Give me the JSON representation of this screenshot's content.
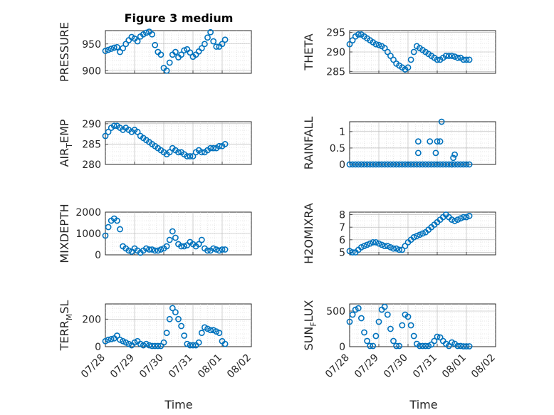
{
  "figure_title": "Figure 3 medium",
  "colors": {
    "marker": "#0072BD",
    "axis": "#262626",
    "grid": "#b0b0b0"
  },
  "x_ticks": [
    "07/28",
    "07/29",
    "07/30",
    "07/31",
    "08/01",
    "08/02"
  ],
  "x_label": "Time",
  "chart_data": [
    {
      "id": "pressure",
      "type": "scatter",
      "ylabel_parts": [
        "PRESSURE"
      ],
      "ylim": [
        895,
        975
      ],
      "yticks": [
        900,
        950
      ],
      "x": [
        0.0,
        0.1,
        0.2,
        0.3,
        0.4,
        0.5,
        0.6,
        0.7,
        0.8,
        0.9,
        1.0,
        1.1,
        1.2,
        1.3,
        1.4,
        1.5,
        1.6,
        1.7,
        1.8,
        1.9,
        2.0,
        2.1,
        2.2,
        2.3,
        2.4,
        2.5,
        2.6,
        2.7,
        2.8,
        2.9,
        3.0,
        3.1,
        3.2,
        3.3,
        3.4,
        3.5,
        3.6,
        3.7,
        3.8,
        3.9,
        4.0,
        4.1
      ],
      "y": [
        937,
        939,
        941,
        943,
        944,
        935,
        942,
        950,
        957,
        963,
        960,
        955,
        964,
        968,
        971,
        973,
        968,
        948,
        935,
        930,
        905,
        900,
        915,
        930,
        935,
        925,
        930,
        938,
        940,
        934,
        926,
        930,
        936,
        942,
        950,
        962,
        972,
        955,
        945,
        945,
        950,
        958
      ]
    },
    {
      "id": "theta",
      "type": "scatter",
      "ylabel_parts": [
        "THETA"
      ],
      "ylim": [
        284.5,
        295.5
      ],
      "yticks": [
        285,
        290,
        295
      ],
      "x": [
        0.0,
        0.1,
        0.2,
        0.3,
        0.4,
        0.5,
        0.6,
        0.7,
        0.8,
        0.9,
        1.0,
        1.1,
        1.2,
        1.3,
        1.4,
        1.5,
        1.6,
        1.7,
        1.8,
        1.9,
        2.0,
        2.1,
        2.2,
        2.3,
        2.4,
        2.5,
        2.6,
        2.7,
        2.8,
        2.9,
        3.0,
        3.1,
        3.2,
        3.3,
        3.4,
        3.5,
        3.6,
        3.7,
        3.8,
        3.9,
        4.0,
        4.1
      ],
      "y": [
        292,
        293,
        294,
        294.5,
        294.5,
        294,
        293.5,
        293,
        292.5,
        292,
        291.8,
        291.5,
        291,
        290,
        289,
        288,
        287,
        286.5,
        286,
        285.5,
        286,
        288,
        290,
        291.5,
        291,
        290.5,
        290,
        289.5,
        289,
        288.5,
        288,
        288,
        288.5,
        289,
        289,
        289,
        288.8,
        288.5,
        288.5,
        288,
        288,
        288
      ]
    },
    {
      "id": "air_temp",
      "type": "scatter",
      "ylabel_parts": [
        "AIR",
        "T",
        "EMP"
      ],
      "ylim": [
        280,
        290.5
      ],
      "yticks": [
        280,
        285,
        290
      ],
      "x": [
        0.0,
        0.1,
        0.2,
        0.3,
        0.4,
        0.5,
        0.6,
        0.7,
        0.8,
        0.9,
        1.0,
        1.1,
        1.2,
        1.3,
        1.4,
        1.5,
        1.6,
        1.7,
        1.8,
        1.9,
        2.0,
        2.1,
        2.2,
        2.3,
        2.4,
        2.5,
        2.6,
        2.7,
        2.8,
        2.9,
        3.0,
        3.1,
        3.2,
        3.3,
        3.4,
        3.5,
        3.6,
        3.7,
        3.8,
        3.9,
        4.0,
        4.1
      ],
      "y": [
        287,
        288,
        289,
        289.5,
        289.5,
        289,
        288.5,
        289,
        288.5,
        288,
        288.5,
        288,
        287,
        286.5,
        286,
        285.5,
        285,
        284.5,
        284,
        283.5,
        283,
        282.5,
        283,
        284,
        283.5,
        283,
        283,
        282.5,
        282,
        282,
        282,
        283,
        283.5,
        283,
        283,
        283.5,
        284,
        284,
        284,
        284.5,
        284.5,
        285
      ]
    },
    {
      "id": "rainfall",
      "type": "scatter",
      "ylabel_parts": [
        "RAINFALL"
      ],
      "ylim": [
        0,
        1.3
      ],
      "yticks": [
        0,
        0.5,
        1
      ],
      "ytick_labels": [
        "0",
        "0.5",
        "1"
      ],
      "x": [
        0.0,
        0.1,
        0.2,
        0.3,
        0.4,
        0.5,
        0.6,
        0.7,
        0.8,
        0.9,
        1.0,
        1.1,
        1.2,
        1.3,
        1.4,
        1.5,
        1.6,
        1.7,
        1.8,
        1.9,
        2.0,
        2.1,
        2.2,
        2.3,
        2.4,
        2.5,
        2.6,
        2.7,
        2.8,
        2.9,
        3.0,
        3.1,
        3.2,
        3.3,
        3.4,
        3.5,
        3.6,
        3.7,
        3.8,
        3.9,
        4.0,
        4.1,
        2.35,
        2.35,
        2.75,
        2.95,
        3.0,
        3.1,
        3.15,
        3.55,
        3.6,
        3.5
      ],
      "y": [
        0,
        0,
        0,
        0,
        0,
        0,
        0,
        0,
        0,
        0,
        0,
        0,
        0,
        0,
        0,
        0,
        0,
        0,
        0,
        0,
        0,
        0,
        0,
        0,
        0,
        0,
        0,
        0,
        0,
        0,
        0,
        0,
        0,
        0,
        0,
        0,
        0,
        0,
        0,
        0,
        0,
        0,
        0.35,
        0.7,
        0.7,
        0.35,
        0.7,
        0.7,
        1.3,
        0.2,
        0.3,
        0
      ]
    },
    {
      "id": "mixdepth",
      "type": "scatter",
      "ylabel_parts": [
        "MIXDEPTH"
      ],
      "ylim": [
        0,
        2000
      ],
      "yticks": [
        0,
        1000,
        2000
      ],
      "x": [
        0.0,
        0.1,
        0.2,
        0.3,
        0.4,
        0.5,
        0.6,
        0.7,
        0.8,
        0.9,
        1.0,
        1.1,
        1.2,
        1.3,
        1.4,
        1.5,
        1.6,
        1.7,
        1.8,
        1.9,
        2.0,
        2.1,
        2.2,
        2.3,
        2.4,
        2.5,
        2.6,
        2.7,
        2.8,
        2.9,
        3.0,
        3.1,
        3.2,
        3.3,
        3.4,
        3.5,
        3.6,
        3.7,
        3.8,
        3.9,
        4.0,
        4.1
      ],
      "y": [
        900,
        1300,
        1600,
        1700,
        1600,
        1200,
        400,
        300,
        200,
        150,
        300,
        200,
        100,
        200,
        300,
        250,
        250,
        200,
        200,
        250,
        300,
        400,
        700,
        1100,
        800,
        500,
        400,
        400,
        450,
        600,
        500,
        400,
        500,
        700,
        300,
        200,
        200,
        300,
        250,
        200,
        250,
        250
      ]
    },
    {
      "id": "h2omixra",
      "type": "scatter",
      "ylabel_parts": [
        "H2OMIXRA"
      ],
      "ylim": [
        4.8,
        8.2
      ],
      "yticks": [
        5,
        6,
        7,
        8
      ],
      "x": [
        0.0,
        0.1,
        0.2,
        0.3,
        0.4,
        0.5,
        0.6,
        0.7,
        0.8,
        0.9,
        1.0,
        1.1,
        1.2,
        1.3,
        1.4,
        1.5,
        1.6,
        1.7,
        1.8,
        1.9,
        2.0,
        2.1,
        2.2,
        2.3,
        2.4,
        2.5,
        2.6,
        2.7,
        2.8,
        2.9,
        3.0,
        3.1,
        3.2,
        3.3,
        3.4,
        3.5,
        3.6,
        3.7,
        3.8,
        3.9,
        4.0,
        4.1
      ],
      "y": [
        5.1,
        5.0,
        5.0,
        5.2,
        5.4,
        5.5,
        5.6,
        5.7,
        5.8,
        5.8,
        5.7,
        5.6,
        5.5,
        5.5,
        5.4,
        5.3,
        5.3,
        5.2,
        5.2,
        5.5,
        5.8,
        6.0,
        6.2,
        6.3,
        6.4,
        6.5,
        6.6,
        6.8,
        7.0,
        7.2,
        7.4,
        7.6,
        7.8,
        8.0,
        7.8,
        7.6,
        7.5,
        7.6,
        7.7,
        7.8,
        7.8,
        7.9
      ]
    },
    {
      "id": "terr_msl",
      "type": "scatter",
      "ylabel_parts": [
        "TERR",
        "M",
        "SL"
      ],
      "ylim": [
        0,
        310
      ],
      "yticks": [
        0,
        200
      ],
      "x": [
        0.0,
        0.1,
        0.2,
        0.3,
        0.4,
        0.5,
        0.6,
        0.7,
        0.8,
        0.9,
        1.0,
        1.1,
        1.2,
        1.3,
        1.4,
        1.5,
        1.6,
        1.7,
        1.8,
        1.9,
        2.0,
        2.1,
        2.2,
        2.3,
        2.4,
        2.5,
        2.6,
        2.7,
        2.8,
        2.9,
        3.0,
        3.1,
        3.2,
        3.3,
        3.4,
        3.5,
        3.6,
        3.7,
        3.8,
        3.9,
        4.0,
        4.1
      ],
      "y": [
        40,
        50,
        55,
        60,
        80,
        50,
        40,
        30,
        20,
        10,
        30,
        40,
        20,
        10,
        20,
        10,
        5,
        5,
        5,
        5,
        30,
        100,
        200,
        280,
        250,
        200,
        150,
        80,
        20,
        10,
        10,
        10,
        30,
        100,
        140,
        130,
        120,
        120,
        110,
        100,
        40,
        20
      ]
    },
    {
      "id": "sun_flux",
      "type": "scatter",
      "ylabel_parts": [
        "SUN",
        "F",
        "LUX"
      ],
      "ylim": [
        0,
        600
      ],
      "yticks": [
        0,
        500
      ],
      "x": [
        0.0,
        0.1,
        0.2,
        0.3,
        0.4,
        0.5,
        0.6,
        0.7,
        0.8,
        0.9,
        1.0,
        1.1,
        1.2,
        1.3,
        1.4,
        1.5,
        1.6,
        1.7,
        1.8,
        1.9,
        2.0,
        2.1,
        2.2,
        2.3,
        2.4,
        2.5,
        2.6,
        2.7,
        2.8,
        2.9,
        3.0,
        3.1,
        3.2,
        3.3,
        3.4,
        3.5,
        3.6,
        3.7,
        3.8,
        3.9,
        4.0,
        4.1
      ],
      "y": [
        350,
        450,
        520,
        540,
        400,
        200,
        80,
        10,
        10,
        150,
        350,
        520,
        560,
        450,
        250,
        80,
        10,
        10,
        300,
        450,
        420,
        300,
        150,
        40,
        10,
        10,
        10,
        10,
        30,
        80,
        140,
        130,
        80,
        40,
        10,
        60,
        40,
        10,
        10,
        5,
        5,
        5
      ]
    }
  ]
}
